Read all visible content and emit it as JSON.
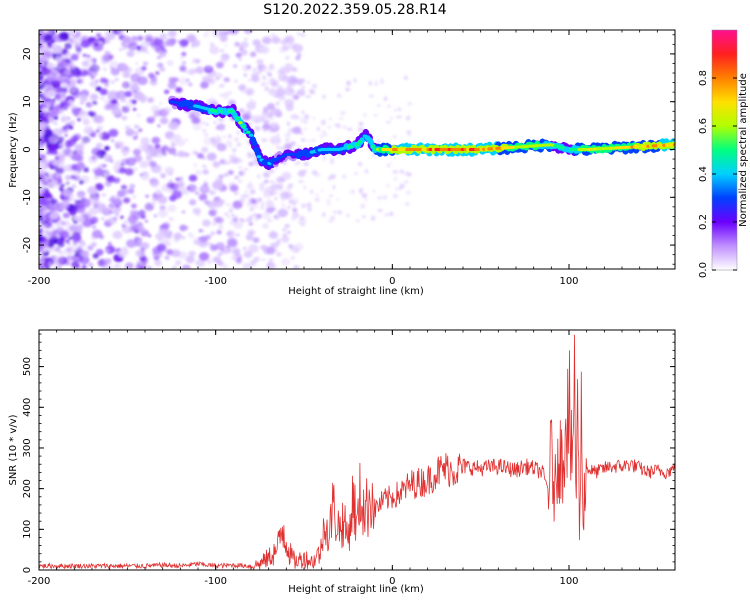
{
  "title": "S120.2022.359.05.28.R14",
  "chart_data": [
    {
      "type": "heatmap",
      "xlabel": "Height of straight line (km)",
      "ylabel": "Frequency (Hz)",
      "xlim": [
        -200,
        160
      ],
      "ylim": [
        -25,
        25
      ],
      "x_ticks": [
        -200,
        -100,
        0,
        100
      ],
      "y_ticks": [
        -20,
        -10,
        0,
        10,
        20
      ],
      "colorbar": {
        "label": "Normalized spectral amplitude",
        "range": [
          0.0,
          1.0
        ],
        "ticks": [
          "0.0",
          "0.2",
          "0.4",
          "0.6",
          "0.8"
        ],
        "colors": [
          "#ffffff",
          "#c090ff",
          "#6a00ff",
          "#0040ff",
          "#00d0ff",
          "#00ff80",
          "#b0ff00",
          "#ffe000",
          "#ff8000",
          "#ff2020",
          "#ff1090"
        ]
      },
      "ridge": {
        "x": [
          -125,
          -110,
          -100,
          -90,
          -85,
          -80,
          -75,
          -70,
          -60,
          -50,
          -40,
          -30,
          -20,
          -15,
          -10,
          0,
          10,
          50,
          90,
          100,
          110,
          160
        ],
        "y": [
          10,
          9,
          8,
          8,
          5,
          3,
          -2,
          -3,
          -1,
          -1,
          0,
          0,
          1,
          3,
          0,
          0,
          0,
          0,
          1,
          0,
          0,
          1
        ],
        "amplitude": [
          0.3,
          0.4,
          0.5,
          0.5,
          0.55,
          0.4,
          0.4,
          0.35,
          0.3,
          0.35,
          0.4,
          0.45,
          0.5,
          0.45,
          0.55,
          0.75,
          0.85,
          0.85,
          0.55,
          0.5,
          0.65,
          0.8
        ]
      }
    },
    {
      "type": "line",
      "xlabel": "Height of straight line (km)",
      "ylabel": "SNR (10 * v/v)",
      "xlim": [
        -200,
        160
      ],
      "ylim": [
        0,
        590
      ],
      "x_ticks": [
        -200,
        -100,
        0,
        100
      ],
      "y_ticks": [
        0,
        100,
        200,
        300,
        400,
        500
      ],
      "color": "#e03030",
      "series": [
        {
          "x": [
            -200,
            -190,
            -180,
            -170,
            -160,
            -150,
            -140,
            -130,
            -120,
            -110,
            -100,
            -90,
            -80,
            -75,
            -70,
            -65,
            -62,
            -58,
            -55,
            -50,
            -45,
            -40,
            -38,
            -36,
            -34,
            -30,
            -28,
            -25,
            -22,
            -20,
            -18,
            -15,
            -12,
            -10,
            -5,
            0,
            5,
            10,
            15,
            20,
            25,
            30,
            35,
            40,
            50,
            60,
            70,
            75,
            80,
            85,
            88,
            90,
            92,
            94,
            96,
            98,
            100,
            102,
            103,
            104,
            105,
            106,
            107,
            108,
            110,
            115,
            120,
            125,
            130,
            135,
            140,
            145,
            150,
            155,
            160
          ],
          "y": [
            10,
            10,
            10,
            10,
            10,
            10,
            10,
            12,
            10,
            15,
            10,
            12,
            10,
            15,
            30,
            50,
            110,
            40,
            20,
            30,
            20,
            50,
            150,
            60,
            160,
            100,
            120,
            80,
            180,
            100,
            190,
            140,
            200,
            150,
            170,
            180,
            190,
            210,
            215,
            220,
            240,
            250,
            245,
            255,
            250,
            255,
            245,
            255,
            250,
            240,
            200,
            280,
            180,
            320,
            250,
            380,
            420,
            200,
            590,
            150,
            400,
            80,
            380,
            150,
            250,
            240,
            250,
            255,
            255,
            260,
            250,
            240,
            245,
            240,
            250
          ]
        }
      ]
    }
  ]
}
